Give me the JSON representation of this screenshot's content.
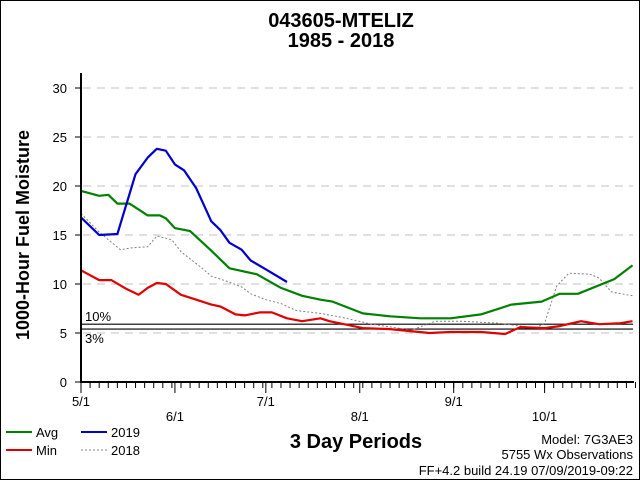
{
  "chart_data": {
    "type": "line",
    "title": "043605-MTELIZ",
    "subtitle": "1985 - 2018",
    "xlabel": "3 Day Periods",
    "ylabel": "1000-Hour Fuel Moisture",
    "ylim": [
      0,
      33
    ],
    "xlim": [
      "5/1",
      "10/31"
    ],
    "yticks": [
      0,
      5,
      10,
      15,
      20,
      25,
      30
    ],
    "xticks": [
      "5/1",
      "6/1",
      "7/1",
      "8/1",
      "9/1",
      "10/1"
    ],
    "grid": true,
    "legend_placement": "bottom-left",
    "thresholds": [
      {
        "label": "10%",
        "value": 5.9,
        "color": "#000000"
      },
      {
        "label": "3%",
        "value": 5.4,
        "color": "#000000"
      }
    ],
    "series": [
      {
        "name": "Avg",
        "color": "#008000",
        "style": "solid",
        "x": [
          "5/1",
          "5/7",
          "5/10",
          "5/13",
          "5/17",
          "5/23",
          "5/27",
          "5/29",
          "6/1",
          "6/6",
          "6/13",
          "6/19",
          "6/28",
          "7/6",
          "7/13",
          "7/19",
          "7/23",
          "8/2",
          "8/11",
          "8/21",
          "8/31",
          "9/10",
          "9/20",
          "9/30",
          "10/6",
          "10/12",
          "10/24",
          "10/30"
        ],
        "y": [
          19.5,
          19.0,
          19.1,
          18.2,
          18.2,
          17.0,
          17.0,
          16.7,
          15.7,
          15.4,
          13.4,
          11.6,
          11.0,
          9.6,
          8.8,
          8.4,
          8.2,
          7.0,
          6.7,
          6.5,
          6.5,
          6.9,
          7.9,
          8.2,
          9.0,
          9.0,
          10.5,
          11.9
        ]
      },
      {
        "name": "2019",
        "color": "#0000cc",
        "style": "solid",
        "x": [
          "5/1",
          "5/7",
          "5/13",
          "5/19",
          "5/23",
          "5/26",
          "5/29",
          "6/1",
          "6/4",
          "6/8",
          "6/13",
          "6/16",
          "6/19",
          "6/23",
          "6/26",
          "7/1",
          "7/8"
        ],
        "y": [
          16.8,
          15.0,
          15.1,
          21.2,
          22.9,
          23.8,
          23.6,
          22.2,
          21.6,
          19.8,
          16.4,
          15.5,
          14.2,
          13.5,
          12.4,
          11.5,
          10.2
        ]
      },
      {
        "name": "Min",
        "color": "#e00000",
        "style": "solid",
        "x": [
          "5/1",
          "5/7",
          "5/11",
          "5/16",
          "5/20",
          "5/23",
          "5/26",
          "5/29",
          "6/3",
          "6/6",
          "6/13",
          "6/16",
          "6/21",
          "6/24",
          "6/29",
          "7/3",
          "7/8",
          "7/13",
          "7/19",
          "7/22",
          "8/2",
          "8/11",
          "8/24",
          "8/31",
          "9/10",
          "9/18",
          "9/23",
          "10/1",
          "10/6",
          "10/13",
          "10/19",
          "10/26",
          "10/30"
        ],
        "y": [
          11.4,
          10.4,
          10.4,
          9.5,
          8.9,
          9.6,
          10.1,
          10.0,
          8.9,
          8.6,
          7.9,
          7.7,
          6.9,
          6.8,
          7.1,
          7.1,
          6.5,
          6.2,
          6.5,
          6.2,
          5.5,
          5.4,
          5.0,
          5.1,
          5.1,
          4.9,
          5.6,
          5.5,
          5.7,
          6.2,
          5.9,
          6.0,
          6.2
        ]
      },
      {
        "name": "2018",
        "color": "#808080",
        "style": "dashed",
        "x": [
          "5/1",
          "5/7",
          "5/14",
          "5/18",
          "5/23",
          "5/26",
          "5/31",
          "6/3",
          "6/10",
          "6/13",
          "6/18",
          "6/23",
          "6/26",
          "7/1",
          "7/6",
          "7/11",
          "7/19",
          "7/26",
          "8/5",
          "8/18",
          "8/26",
          "9/3",
          "9/16",
          "9/28",
          "10/1",
          "10/5",
          "10/9",
          "10/16",
          "10/19",
          "10/23",
          "10/30"
        ],
        "y": [
          17.2,
          15.3,
          13.5,
          13.7,
          13.8,
          14.9,
          14.5,
          13.3,
          11.6,
          10.8,
          10.3,
          9.7,
          9.0,
          8.4,
          8.0,
          7.3,
          7.0,
          6.6,
          5.9,
          5.3,
          6.2,
          6.2,
          6.0,
          5.5,
          6.0,
          9.8,
          11.1,
          11.0,
          10.6,
          9.2,
          8.8
        ]
      }
    ]
  },
  "footer": {
    "model": "Model: 7G3AE3",
    "observations": "5755 Wx Observations",
    "build": "FF+4.2 build 24.19 07/09/2019-09:22"
  }
}
